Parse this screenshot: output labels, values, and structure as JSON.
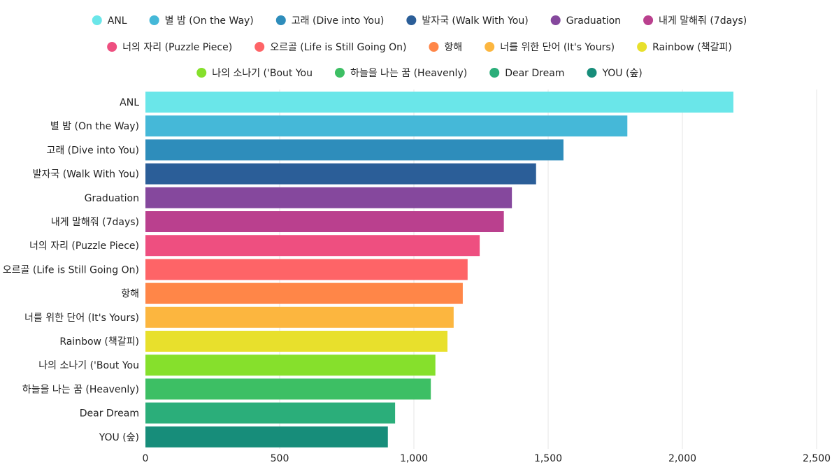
{
  "chart_data": {
    "type": "bar",
    "orientation": "horizontal",
    "title": "",
    "xlabel": "",
    "ylabel": "",
    "xlim": [
      0,
      2500
    ],
    "x_ticks": [
      0,
      500,
      1000,
      1500,
      2000,
      2500
    ],
    "x_tick_labels": [
      "0",
      "500",
      "1,000",
      "1,500",
      "2,000",
      "2,500"
    ],
    "grid": true,
    "legend_position": "top",
    "categories": [
      "ANL",
      "별 밤 (On the Way)",
      "고래 (Dive into You)",
      "발자국 (Walk With You)",
      "Graduation",
      "내게 말해줘 (7days)",
      "너의 자리 (Puzzle Piece)",
      "오르골 (Life is Still Going On)",
      "항해",
      "너를 위한 단어 (It's Yours)",
      "Rainbow (책갈피)",
      "나의 소나기 ('Bout You",
      "하늘을 나는 꿈 (Heavenly)",
      "Dear Dream",
      "YOU (숲)"
    ],
    "values": [
      2190,
      1795,
      1557,
      1455,
      1365,
      1335,
      1245,
      1200,
      1182,
      1148,
      1125,
      1080,
      1063,
      930,
      903
    ],
    "colors": [
      "#6ae6e9",
      "#45b8d8",
      "#2e8dbb",
      "#2b5e98",
      "#85489d",
      "#ba408e",
      "#ee4f80",
      "#fe6467",
      "#ff8648",
      "#fcb63f",
      "#e8e02c",
      "#86e02c",
      "#3dbf64",
      "#2bae7a",
      "#178d7a"
    ]
  }
}
